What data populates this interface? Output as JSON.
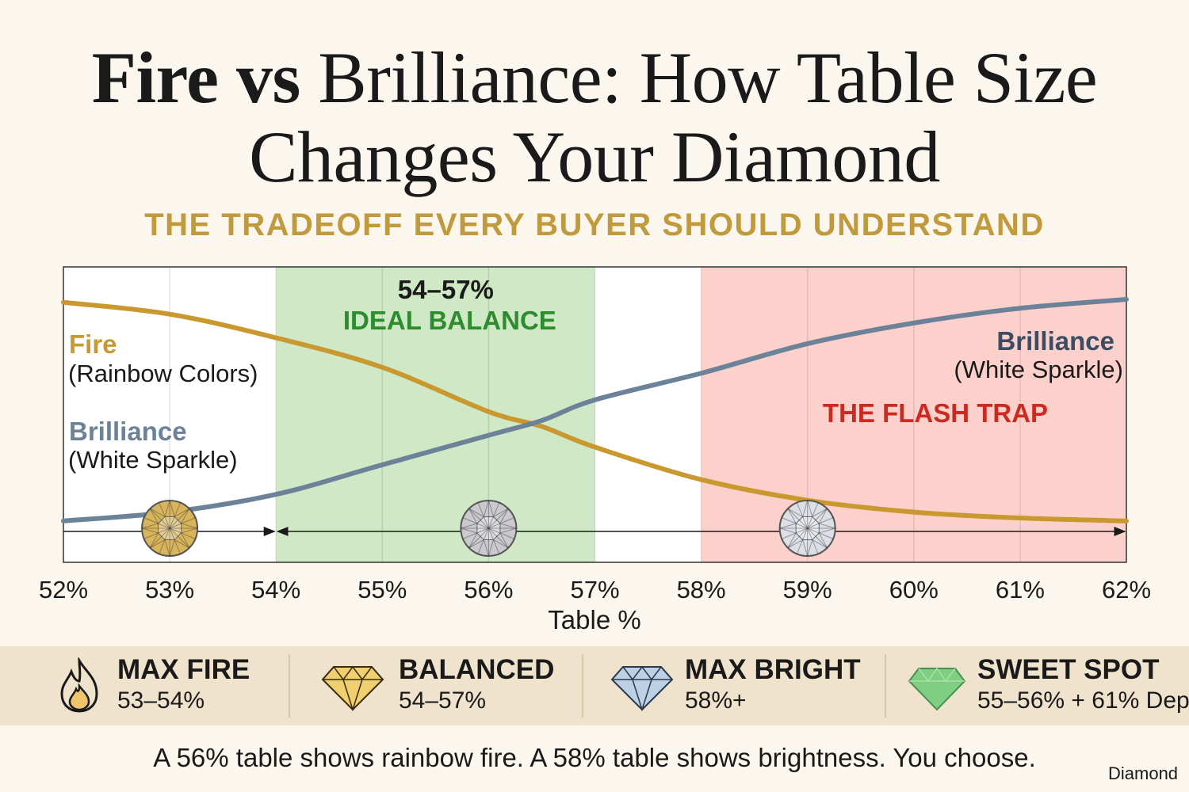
{
  "title_line1": {
    "bold": "Fire vs ",
    "regular": "Brilliance: How Table Size"
  },
  "title_line2": "Changes Your Diamond",
  "subtitle": "THE TRADEOFF EVERY BUYER SHOULD UNDERSTAND",
  "chart_data": {
    "type": "line",
    "xlabel": "Table %",
    "ylabel": "",
    "xlim": [
      52,
      62
    ],
    "ylim": [
      0,
      100
    ],
    "x_ticks": [
      "52%",
      "53%",
      "54%",
      "55%",
      "56%",
      "57%",
      "58%",
      "59%",
      "60%",
      "61%",
      "62%"
    ],
    "grid": true,
    "series": [
      {
        "name": "Fire",
        "label_line1": "Fire",
        "label_line2": "(Rainbow Colors)",
        "color": "#c9982f",
        "x": [
          52,
          53,
          54,
          55,
          56,
          56.5,
          57,
          58,
          59,
          60,
          61,
          62
        ],
        "y": [
          88,
          84,
          76,
          66,
          51,
          46,
          39,
          28,
          21,
          17,
          15,
          14
        ]
      },
      {
        "name": "Brilliance",
        "label_line1": "Brilliance",
        "label_line2": "(White Sparkle)",
        "color": "#6b8299",
        "x": [
          52,
          53,
          54,
          55,
          56,
          56.5,
          57,
          58,
          59,
          60,
          61,
          62
        ],
        "y": [
          14,
          17,
          23,
          33,
          43,
          48,
          55,
          64,
          74,
          81,
          86,
          89
        ]
      }
    ],
    "regions": [
      {
        "name": "ideal",
        "from": 54,
        "to": 57,
        "color": "#cfe8c5",
        "label_line1": "54–57%",
        "label_line2": "IDEAL BALANCE",
        "label_color": "#2e8b2e"
      },
      {
        "name": "flash",
        "from": 58,
        "to": 62,
        "color": "#fcd0cb",
        "label_line1": "THE FLASH TRAP",
        "label_color": "#cc2a20"
      }
    ],
    "diamonds": [
      {
        "x": 53,
        "type": "fire",
        "color": "#d8b45a"
      },
      {
        "x": 56,
        "type": "balanced",
        "color": "#c9c9cf"
      },
      {
        "x": 59,
        "type": "bright",
        "color": "#dcdfe6"
      }
    ],
    "arrows": [
      {
        "from": 52,
        "to": 54
      },
      {
        "from": 54,
        "to": 62
      }
    ],
    "brilliance_right_label": {
      "line1": "Brilliance",
      "line2": "(White Sparkle)"
    }
  },
  "legend": [
    {
      "icon": "flame-icon",
      "label": "MAX FIRE",
      "range": "53–54%",
      "color": "#c9982f"
    },
    {
      "icon": "gold-diamond-icon",
      "label": "BALANCED",
      "range": "54–57%",
      "color": "#d7a93a"
    },
    {
      "icon": "blue-diamond-icon",
      "label": "MAX BRIGHT",
      "range": "58%+",
      "color": "#8ba6c4"
    },
    {
      "icon": "green-diamond-icon",
      "label": "SWEET SPOT",
      "range": "55–56% + 61% Dep",
      "color": "#6fbf73"
    }
  ],
  "footer": "A 56% table shows rainbow fire. A 58% table shows brightness. You choose.",
  "watermark": "Diamond"
}
